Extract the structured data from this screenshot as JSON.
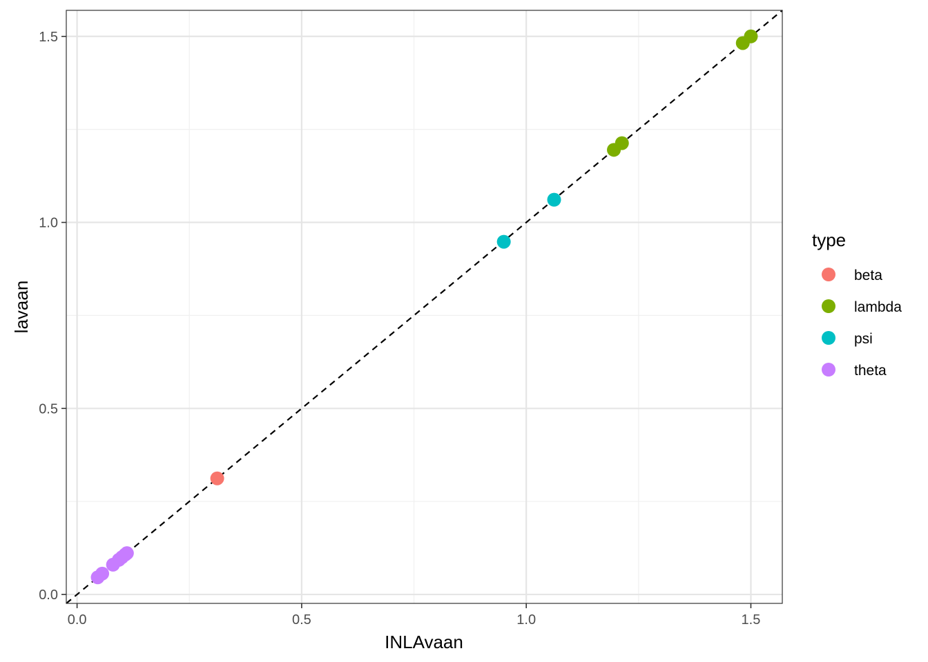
{
  "chart_data": {
    "type": "scatter",
    "xlabel": "INLAvaan",
    "ylabel": "lavaan",
    "xlim": [
      -0.024,
      1.57
    ],
    "ylim": [
      -0.024,
      1.57
    ],
    "x_ticks": [
      0.0,
      0.5,
      1.0,
      1.5
    ],
    "y_ticks": [
      0.0,
      0.5,
      1.0,
      1.5
    ],
    "x_tick_labels": [
      "0.0",
      "0.5",
      "1.0",
      "1.5"
    ],
    "y_tick_labels": [
      "0.0",
      "0.5",
      "1.0",
      "1.5"
    ],
    "grid": true,
    "reference_line": "y = x (dashed)",
    "legend": {
      "title": "type",
      "placement": "right"
    },
    "series": [
      {
        "name": "beta",
        "color": "#F8766D",
        "points": [
          [
            0.312,
            0.312
          ]
        ]
      },
      {
        "name": "lambda",
        "color": "#7CAE00",
        "points": [
          [
            1.195,
            1.195
          ],
          [
            1.213,
            1.213
          ],
          [
            1.482,
            1.482
          ],
          [
            1.5,
            1.5
          ]
        ]
      },
      {
        "name": "psi",
        "color": "#00BFC4",
        "points": [
          [
            0.95,
            0.948
          ],
          [
            1.062,
            1.061
          ]
        ]
      },
      {
        "name": "theta",
        "color": "#C77CFF",
        "points": [
          [
            0.046,
            0.046
          ],
          [
            0.056,
            0.056
          ],
          [
            0.08,
            0.08
          ],
          [
            0.093,
            0.093
          ],
          [
            0.1,
            0.1
          ],
          [
            0.107,
            0.107
          ],
          [
            0.111,
            0.111
          ]
        ]
      }
    ]
  }
}
